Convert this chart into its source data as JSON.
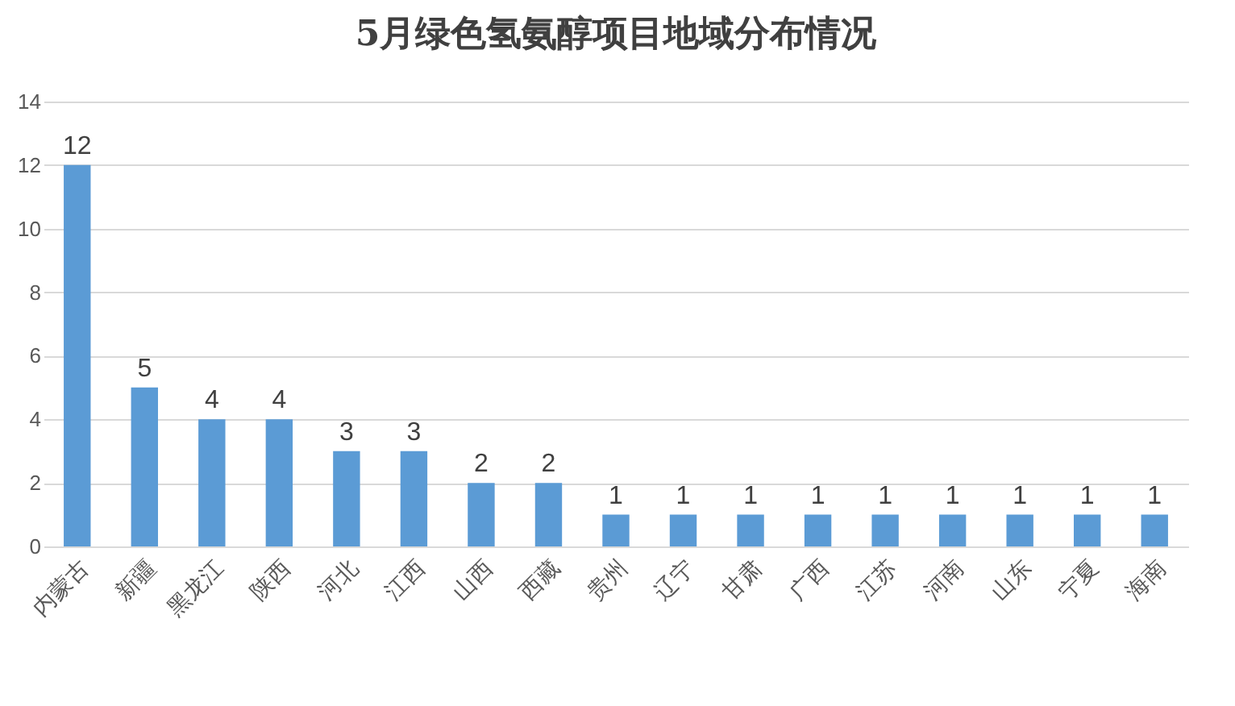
{
  "chart_data": {
    "type": "bar",
    "title": "5月绿色氢氨醇项目地域分布情况",
    "categories": [
      "内蒙古",
      "新疆",
      "黑龙江",
      "陕西",
      "河北",
      "江西",
      "山西",
      "西藏",
      "贵州",
      "辽宁",
      "甘肃",
      "广西",
      "江苏",
      "河南",
      "山东",
      "宁夏",
      "海南"
    ],
    "values": [
      12,
      5,
      4,
      4,
      3,
      3,
      2,
      2,
      1,
      1,
      1,
      1,
      1,
      1,
      1,
      1,
      1
    ],
    "color": "#5b9bd5",
    "ylim": [
      0,
      14
    ],
    "yticks": [
      0,
      2,
      4,
      6,
      8,
      10,
      12,
      14
    ],
    "grid": "y",
    "data_labels": true
  }
}
